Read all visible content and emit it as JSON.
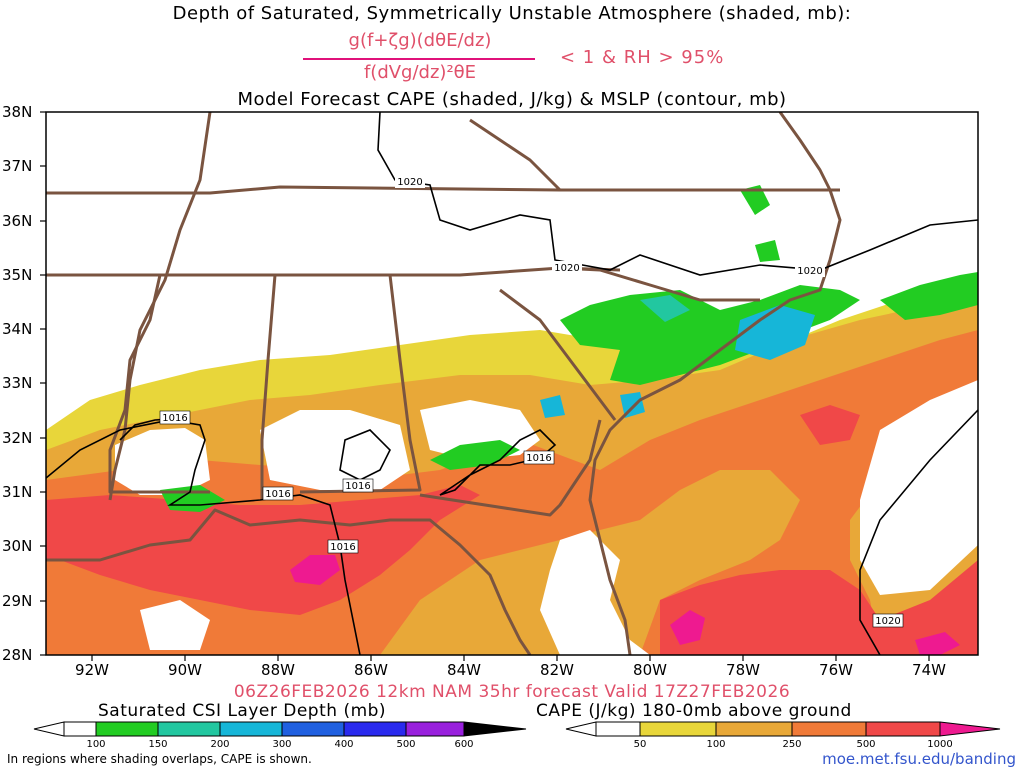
{
  "header": {
    "title": "Depth of Saturated, Symmetrically Unstable Atmosphere (shaded, mb):",
    "numerator": "g(f+ζg)(dθE/dz)",
    "denominator": "f(dVg/dz)²θE",
    "condition": "< 1 & RH > 95%",
    "subtitle": "Model Forecast CAPE (shaded, J/kg) & MSLP (contour, mb)"
  },
  "axes": {
    "lat_labels": [
      "38N",
      "37N",
      "36N",
      "35N",
      "34N",
      "33N",
      "32N",
      "31N",
      "30N",
      "29N",
      "28N"
    ],
    "lon_labels": [
      "92W",
      "90W",
      "88W",
      "86W",
      "84W",
      "82W",
      "80W",
      "78W",
      "76W",
      "74W"
    ]
  },
  "run_info": "06Z26FEB2026 12km NAM 35hr forecast Valid 17Z27FEB2026",
  "isobars": [
    "1020",
    "1020",
    "1020",
    "1020",
    "1016",
    "1016",
    "1016",
    "1016",
    "1016"
  ],
  "colorbars": {
    "csi": {
      "title": "Saturated CSI Layer Depth (mb)",
      "ticks": [
        "100",
        "150",
        "200",
        "300",
        "400",
        "500",
        "600"
      ],
      "colors": [
        "#ffffff",
        "#22cc22",
        "#22c7a0",
        "#16b6d8",
        "#2060e0",
        "#2a2aee",
        "#9920dd",
        "#000000"
      ]
    },
    "cape": {
      "title": "CAPE (J/kg) 180-0mb above ground",
      "ticks": [
        "50",
        "100",
        "250",
        "500",
        "1000"
      ],
      "colors": [
        "#ffffff",
        "#e8d63a",
        "#e8a838",
        "#f07a38",
        "#f04848",
        "#ee1a90"
      ]
    }
  },
  "footer": {
    "note": "In regions where shading overlaps, CAPE is shown.",
    "url": "moe.met.fsu.edu/banding"
  },
  "colors": {
    "state_border": "#7a5440",
    "isobar": "#000000",
    "title_accent": "#e0506a"
  }
}
